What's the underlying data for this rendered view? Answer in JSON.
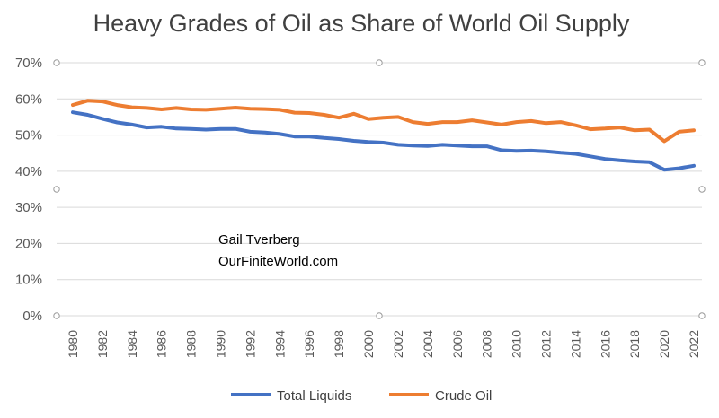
{
  "chart_data": {
    "type": "line",
    "title": "Heavy Grades of Oil as Share of World Oil Supply",
    "xlabel": "",
    "ylabel": "",
    "ylim": [
      0,
      70
    ],
    "y_ticks": [
      "0%",
      "10%",
      "20%",
      "30%",
      "40%",
      "50%",
      "60%",
      "70%"
    ],
    "x_ticks": [
      "1980",
      "1982",
      "1984",
      "1986",
      "1988",
      "1990",
      "1992",
      "1994",
      "1996",
      "1998",
      "2000",
      "2002",
      "2004",
      "2006",
      "2008",
      "2010",
      "2012",
      "2014",
      "2016",
      "2018",
      "2020",
      "2022"
    ],
    "x": [
      1980,
      1981,
      1982,
      1983,
      1984,
      1985,
      1986,
      1987,
      1988,
      1989,
      1990,
      1991,
      1992,
      1993,
      1994,
      1995,
      1996,
      1997,
      1998,
      1999,
      2000,
      2001,
      2002,
      2003,
      2004,
      2005,
      2006,
      2007,
      2008,
      2009,
      2010,
      2011,
      2012,
      2013,
      2014,
      2015,
      2016,
      2017,
      2018,
      2019,
      2020,
      2021,
      2022
    ],
    "grid": true,
    "legend_position": "bottom",
    "series": [
      {
        "name": "Total Liquids",
        "color": "#4472c4",
        "values": [
          56.3,
          55.6,
          54.5,
          53.5,
          52.9,
          52.1,
          52.3,
          51.8,
          51.7,
          51.5,
          51.7,
          51.7,
          50.9,
          50.7,
          50.3,
          49.6,
          49.6,
          49.2,
          48.9,
          48.4,
          48.1,
          47.9,
          47.3,
          47.1,
          47.0,
          47.3,
          47.1,
          46.9,
          46.9,
          45.8,
          45.6,
          45.7,
          45.5,
          45.1,
          44.8,
          44.1,
          43.4,
          43.0,
          42.7,
          42.5,
          40.4,
          40.8,
          41.5
        ]
      },
      {
        "name": "Crude Oil",
        "color": "#ed7d31",
        "values": [
          58.3,
          59.5,
          59.3,
          58.3,
          57.7,
          57.5,
          57.1,
          57.5,
          57.1,
          57.0,
          57.3,
          57.6,
          57.3,
          57.2,
          57.0,
          56.2,
          56.1,
          55.6,
          54.8,
          55.9,
          54.4,
          54.8,
          55.0,
          53.6,
          53.1,
          53.6,
          53.6,
          54.1,
          53.5,
          52.9,
          53.6,
          53.9,
          53.3,
          53.6,
          52.7,
          51.6,
          51.8,
          52.1,
          51.3,
          51.5,
          48.3,
          50.9,
          51.3
        ]
      }
    ],
    "annotations": [
      "Gail Tverberg",
      "OurFiniteWorld.com"
    ]
  }
}
